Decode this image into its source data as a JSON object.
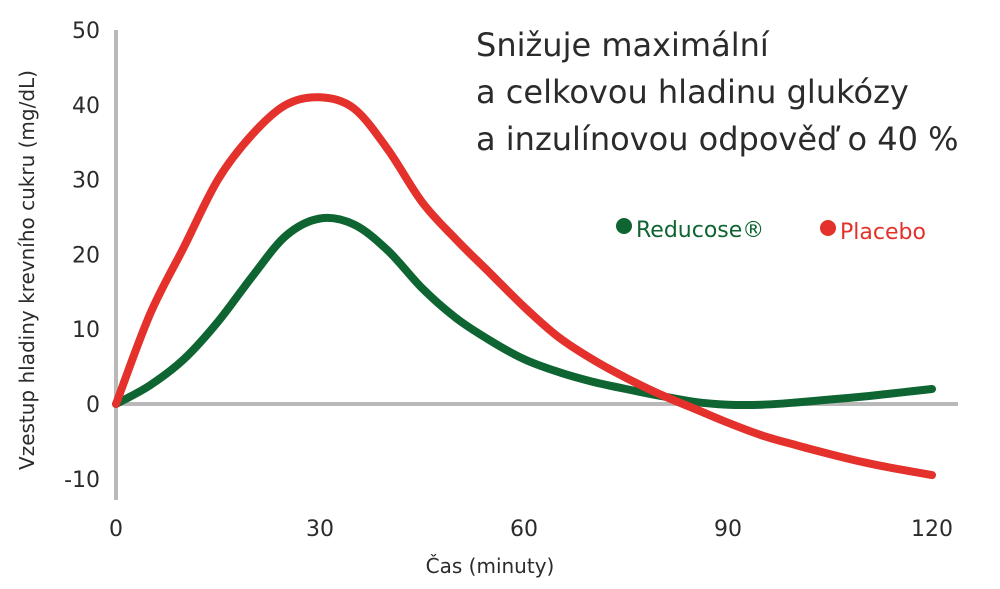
{
  "chart_data": {
    "type": "line",
    "title_lines": [
      "Snižuje maximální",
      "a celkovou hladinu glukózy",
      "a inzulínovou odpověď o 40 %"
    ],
    "xlabel": "Čas  (minuty)",
    "ylabel": "Vzestup hladiny krevního cukru  (mg/dL)",
    "xlim": [
      0,
      120
    ],
    "ylim": [
      -10,
      50
    ],
    "x_ticks": [
      0,
      30,
      60,
      90,
      120
    ],
    "y_ticks": [
      50,
      40,
      30,
      20,
      10,
      0,
      -10
    ],
    "x_tick_labels": [
      "0",
      "30",
      "60",
      "90",
      "120"
    ],
    "y_tick_labels": [
      "50",
      "40",
      "30",
      "20",
      "10",
      "0",
      "-10"
    ],
    "legend_position": "top-right",
    "series": [
      {
        "name": "Reducose®",
        "color": "#0e6531",
        "points": [
          [
            0,
            0
          ],
          [
            5,
            2.5
          ],
          [
            10,
            6
          ],
          [
            15,
            11
          ],
          [
            20,
            17
          ],
          [
            25,
            22.5
          ],
          [
            30,
            24.8
          ],
          [
            35,
            24
          ],
          [
            40,
            20.5
          ],
          [
            45,
            15.5
          ],
          [
            50,
            11.5
          ],
          [
            55,
            8.5
          ],
          [
            60,
            6
          ],
          [
            65,
            4.3
          ],
          [
            70,
            3
          ],
          [
            75,
            2
          ],
          [
            80,
            1.1
          ],
          [
            85,
            0.3
          ],
          [
            90,
            -0.1
          ],
          [
            95,
            -0.1
          ],
          [
            100,
            0.2
          ],
          [
            105,
            0.6
          ],
          [
            110,
            1
          ],
          [
            115,
            1.5
          ],
          [
            120,
            2
          ]
        ]
      },
      {
        "name": "Placebo",
        "color": "#e4312b",
        "points": [
          [
            0,
            0
          ],
          [
            5,
            12
          ],
          [
            10,
            21
          ],
          [
            15,
            30
          ],
          [
            20,
            36
          ],
          [
            25,
            40
          ],
          [
            30,
            41
          ],
          [
            35,
            39.5
          ],
          [
            40,
            34
          ],
          [
            45,
            27
          ],
          [
            50,
            22
          ],
          [
            55,
            17.5
          ],
          [
            60,
            13
          ],
          [
            65,
            9
          ],
          [
            70,
            6
          ],
          [
            75,
            3.5
          ],
          [
            80,
            1.3
          ],
          [
            85,
            -0.6
          ],
          [
            90,
            -2.5
          ],
          [
            95,
            -4.2
          ],
          [
            100,
            -5.5
          ],
          [
            105,
            -6.7
          ],
          [
            110,
            -7.8
          ],
          [
            115,
            -8.7
          ],
          [
            120,
            -9.5
          ]
        ]
      }
    ]
  }
}
